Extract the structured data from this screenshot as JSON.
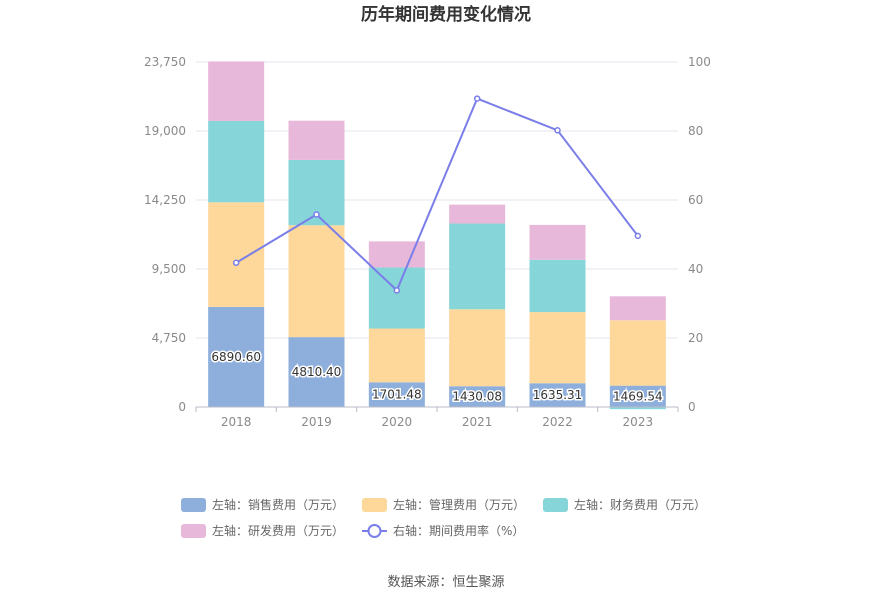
{
  "chart_data": {
    "type": "bar",
    "title": "历年期间费用变化情况",
    "categories": [
      "2018",
      "2019",
      "2020",
      "2021",
      "2022",
      "2023"
    ],
    "y_left": {
      "ticks": [
        "0",
        "4,750",
        "9,500",
        "14,250",
        "19,000",
        "23,750"
      ],
      "min": 0,
      "max": 23750
    },
    "y_right": {
      "ticks": [
        "0",
        "20",
        "40",
        "60",
        "80",
        "100"
      ],
      "min": 0,
      "max": 100
    },
    "series": [
      {
        "name": "左轴：销售费用（万元）",
        "axis": "left",
        "color": "#8eaedb",
        "values": [
          6890.6,
          4810.4,
          1701.48,
          1430.08,
          1635.31,
          1469.54
        ],
        "labels": [
          "6890.60",
          "4810.40",
          "1701.48",
          "1430.08",
          "1635.31",
          "1469.54"
        ]
      },
      {
        "name": "左轴：管理费用（万元）",
        "axis": "left",
        "color": "#fdd89a",
        "values": [
          7200,
          7700,
          3700,
          5300,
          4900,
          4500
        ]
      },
      {
        "name": "左轴：财务费用（万元）",
        "axis": "left",
        "color": "#86d5d8",
        "values": [
          5600,
          4500,
          4200,
          5900,
          3600,
          -150
        ]
      },
      {
        "name": "左轴：研发费用（万元）",
        "axis": "left",
        "color": "#e8b8db",
        "values": [
          4100,
          2700,
          1800,
          1300,
          2400,
          1650
        ]
      },
      {
        "name": "右轴：期间费用率（%）",
        "axis": "right",
        "type": "line",
        "color": "#7a7ee8",
        "values": [
          41.8,
          55.8,
          33.8,
          89.4,
          80.2,
          49.6
        ]
      }
    ],
    "legend_position": "bottom",
    "grid": true
  },
  "source": "数据来源：恒生聚源"
}
